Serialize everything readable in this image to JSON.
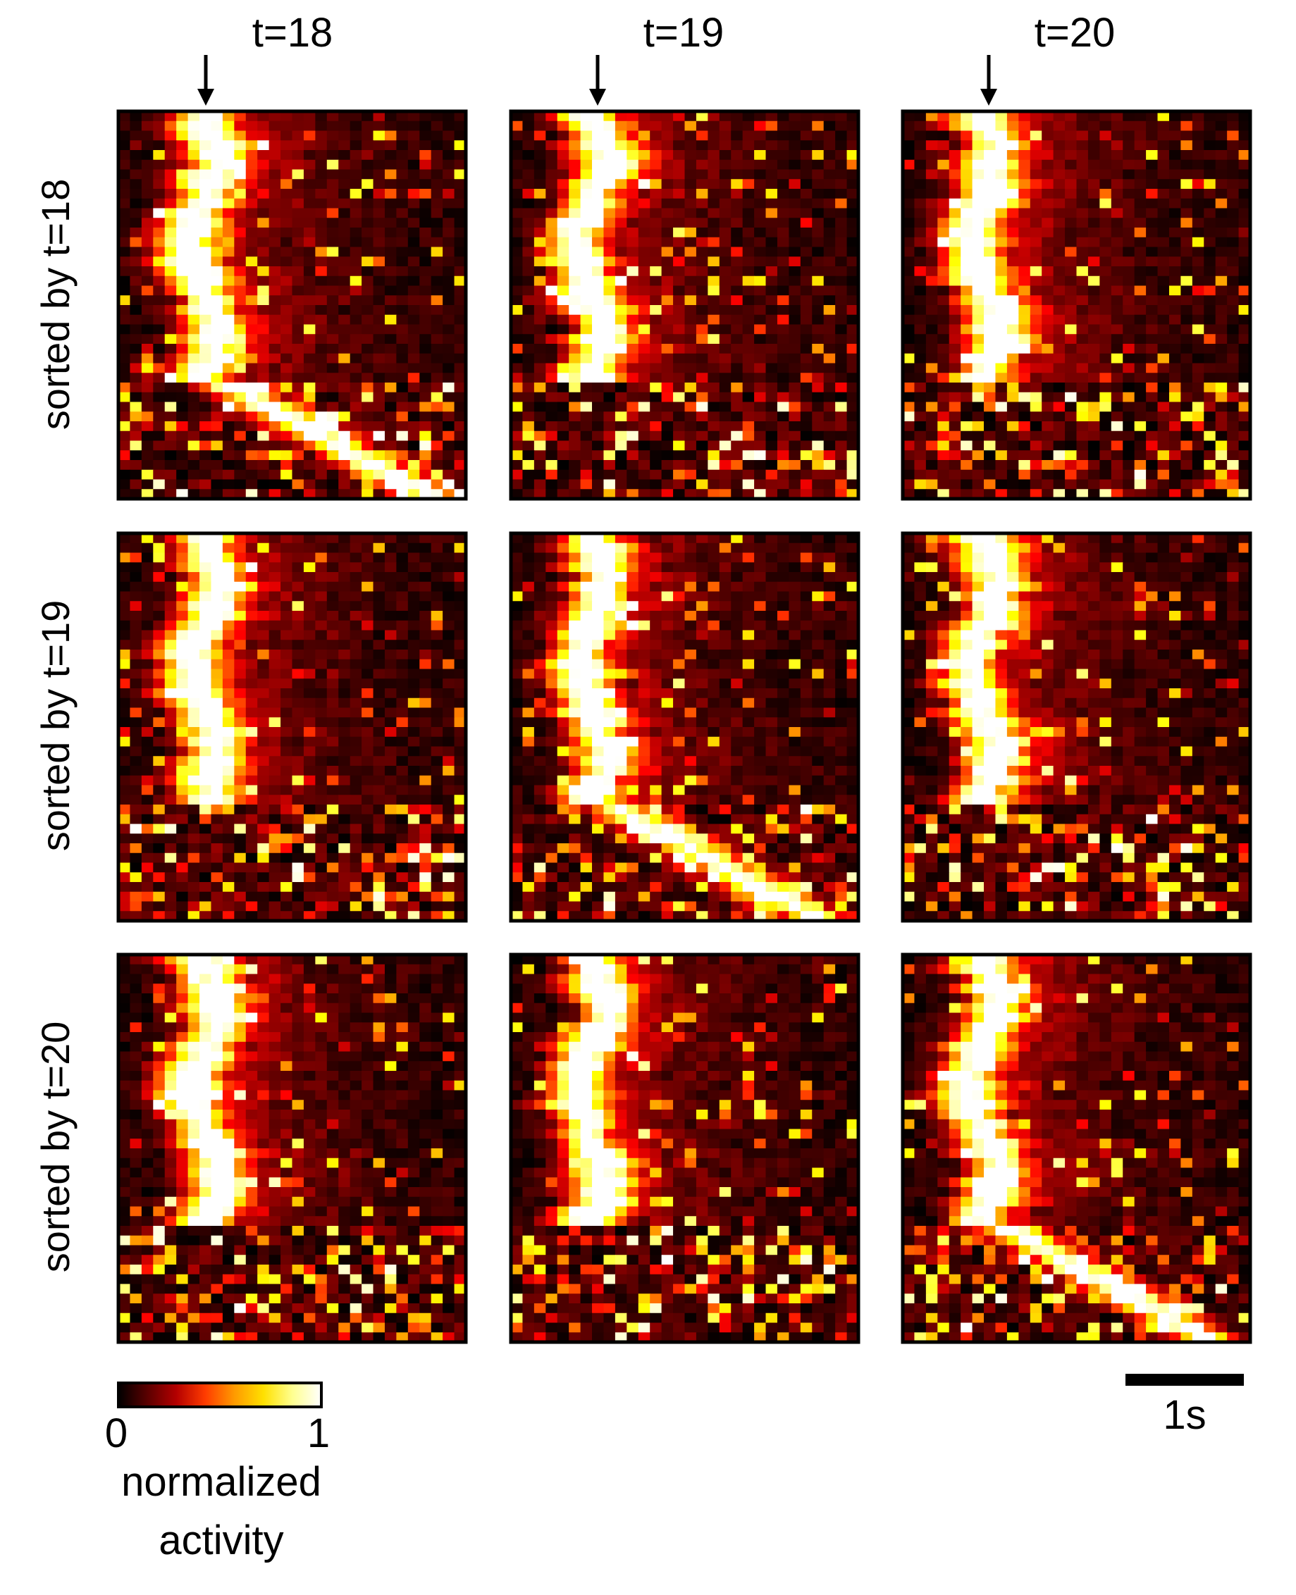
{
  "chart_data": {
    "type": "heatmap",
    "description_of_layout": "3x3 grid of heatmaps: rows = sort order, columns = trial",
    "column_titles": [
      "t=18",
      "t=19",
      "t=20"
    ],
    "row_labels": [
      "sorted by t=18",
      "sorted by t=19",
      "sorted by t=20"
    ],
    "n_neurons": 40,
    "n_timebins": 30,
    "colorbar": {
      "colormap": "hot",
      "range": [
        0,
        1
      ],
      "tick_labels": [
        "0",
        "1"
      ],
      "label_line1": "normalized",
      "label_line2": "activity",
      "colors": [
        "#000000",
        "#5a0000",
        "#b40000",
        "#ff3c00",
        "#ff9a00",
        "#ffe000",
        "#ffff90",
        "#ffffff"
      ]
    },
    "scalebar": {
      "label": "1s"
    },
    "panels": [
      {
        "trial": "t=18",
        "sorted_by": "t=18",
        "peak_time_s": 0.45,
        "sequential_tail": true
      },
      {
        "trial": "t=19",
        "sorted_by": "t=18",
        "peak_time_s": 0.4,
        "sequential_tail": false
      },
      {
        "trial": "t=20",
        "sorted_by": "t=18",
        "peak_time_s": 0.4,
        "sequential_tail": false
      },
      {
        "trial": "t=18",
        "sorted_by": "t=19",
        "peak_time_s": 0.45,
        "sequential_tail": false
      },
      {
        "trial": "t=19",
        "sorted_by": "t=19",
        "peak_time_s": 0.4,
        "sequential_tail": true
      },
      {
        "trial": "t=20",
        "sorted_by": "t=19",
        "peak_time_s": 0.4,
        "sequential_tail": false
      },
      {
        "trial": "t=18",
        "sorted_by": "t=20",
        "peak_time_s": 0.45,
        "sequential_tail": false
      },
      {
        "trial": "t=19",
        "sorted_by": "t=20",
        "peak_time_s": 0.4,
        "sequential_tail": false
      },
      {
        "trial": "t=20",
        "sorted_by": "t=20",
        "peak_time_s": 0.4,
        "sequential_tail": true
      }
    ]
  }
}
